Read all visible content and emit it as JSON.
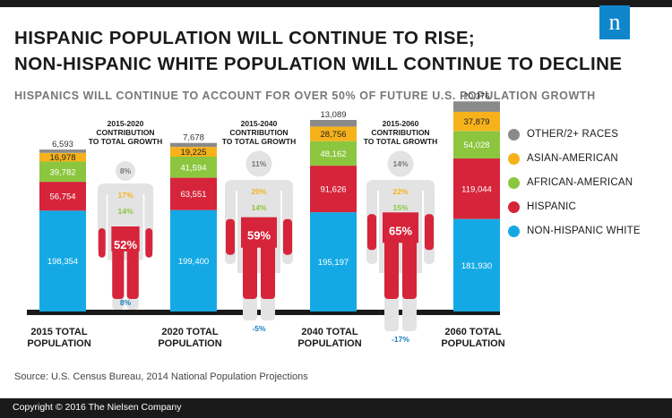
{
  "title_line1": "HISPANIC POPULATION WILL CONTINUE TO RISE;",
  "title_line2": "NON-HISPANIC WHITE POPULATION WILL CONTINUE TO DECLINE",
  "subtitle": "HISPANICS WILL CONTINUE TO ACCOUNT FOR OVER 50% OF FUTURE U.S. POPULATION GROWTH",
  "source": "Source: U.S. Census Bureau, 2014 National Population Projections",
  "copyright": "Copyright © 2016 The Nielsen Company",
  "logo_letter": "n",
  "colors": {
    "other": "#8a8a8a",
    "asian": "#f7b21b",
    "african": "#8cc63f",
    "hispanic": "#d6243a",
    "white": "#14a9e4",
    "ghost": "#e3e3e3",
    "baseline": "#1a1a1a"
  },
  "legend": [
    {
      "label": "OTHER/2+ RACES",
      "color": "#8a8a8a"
    },
    {
      "label": "ASIAN-AMERICAN",
      "color": "#f7b21b"
    },
    {
      "label": "AFRICAN-AMERICAN",
      "color": "#8cc63f"
    },
    {
      "label": "HISPANIC",
      "color": "#d6243a"
    },
    {
      "label": "NON-HISPANIC WHITE",
      "color": "#14a9e4"
    }
  ],
  "chart_data": [
    {
      "type": "bar",
      "title": "",
      "stacked": true,
      "unit": "thousands",
      "categories": [
        "2015 TOTAL POPULATION",
        "2020 TOTAL POPULATION",
        "2040 TOTAL POPULATION",
        "2060 TOTAL POPULATION"
      ],
      "series": [
        {
          "name": "NON-HISPANIC WHITE",
          "values": [
            198354,
            199400,
            195197,
            181930
          ]
        },
        {
          "name": "HISPANIC",
          "values": [
            56754,
            63551,
            91626,
            119044
          ]
        },
        {
          "name": "AFRICAN-AMERICAN",
          "values": [
            39782,
            41594,
            48162,
            54028
          ]
        },
        {
          "name": "ASIAN-AMERICAN",
          "values": [
            16978,
            19225,
            28756,
            37879
          ]
        },
        {
          "name": "OTHER/2+ RACES",
          "values": [
            6593,
            7678,
            13089,
            20376
          ]
        }
      ]
    },
    {
      "type": "bar",
      "stacked": true,
      "unit": "percent",
      "categories": [
        "2015-2020 CONTRIBUTION TO TOTAL GROWTH",
        "2015-2040 CONTRIBUTION TO TOTAL GROWTH",
        "2015-2060 CONTRIBUTION TO TOTAL GROWTH"
      ],
      "series": [
        {
          "name": "OTHER/2+ RACES",
          "values": [
            8,
            11,
            14
          ]
        },
        {
          "name": "ASIAN-AMERICAN",
          "values": [
            17,
            20,
            22
          ]
        },
        {
          "name": "AFRICAN-AMERICAN",
          "values": [
            14,
            14,
            15
          ]
        },
        {
          "name": "HISPANIC",
          "values": [
            52,
            59,
            65
          ]
        },
        {
          "name": "NON-HISPANIC WHITE",
          "values": [
            8,
            -5,
            -17
          ]
        }
      ]
    }
  ],
  "bar_display": [
    {
      "labels": [
        "198,354",
        "56,754",
        "39,782",
        "16,978",
        "6,593"
      ],
      "axis_lines": [
        "2015 TOTAL",
        "POPULATION"
      ]
    },
    {
      "labels": [
        "199,400",
        "63,551",
        "41,594",
        "19,225",
        "7,678"
      ],
      "axis_lines": [
        "2020 TOTAL",
        "POPULATION"
      ]
    },
    {
      "labels": [
        "195,197",
        "91,626",
        "48,162",
        "28,756",
        "13,089"
      ],
      "axis_lines": [
        "2040 TOTAL",
        "POPULATION"
      ]
    },
    {
      "labels": [
        "181,930",
        "119,044",
        "54,028",
        "37,879",
        "20,376"
      ],
      "axis_lines": [
        "2060 TOTAL",
        "POPULATION"
      ]
    }
  ],
  "people_display": [
    {
      "header_lines": [
        "2015-2020",
        "CONTRIBUTION",
        "TO TOTAL GROWTH"
      ],
      "labels": [
        "8%",
        "17%",
        "14%",
        "52%",
        "8%"
      ]
    },
    {
      "header_lines": [
        "2015-2040",
        "CONTRIBUTION",
        "TO TOTAL GROWTH"
      ],
      "labels": [
        "11%",
        "20%",
        "14%",
        "59%",
        "-5%"
      ]
    },
    {
      "header_lines": [
        "2015-2060",
        "CONTRIBUTION",
        "TO TOTAL GROWTH"
      ],
      "labels": [
        "14%",
        "22%",
        "15%",
        "65%",
        "-17%"
      ]
    }
  ]
}
